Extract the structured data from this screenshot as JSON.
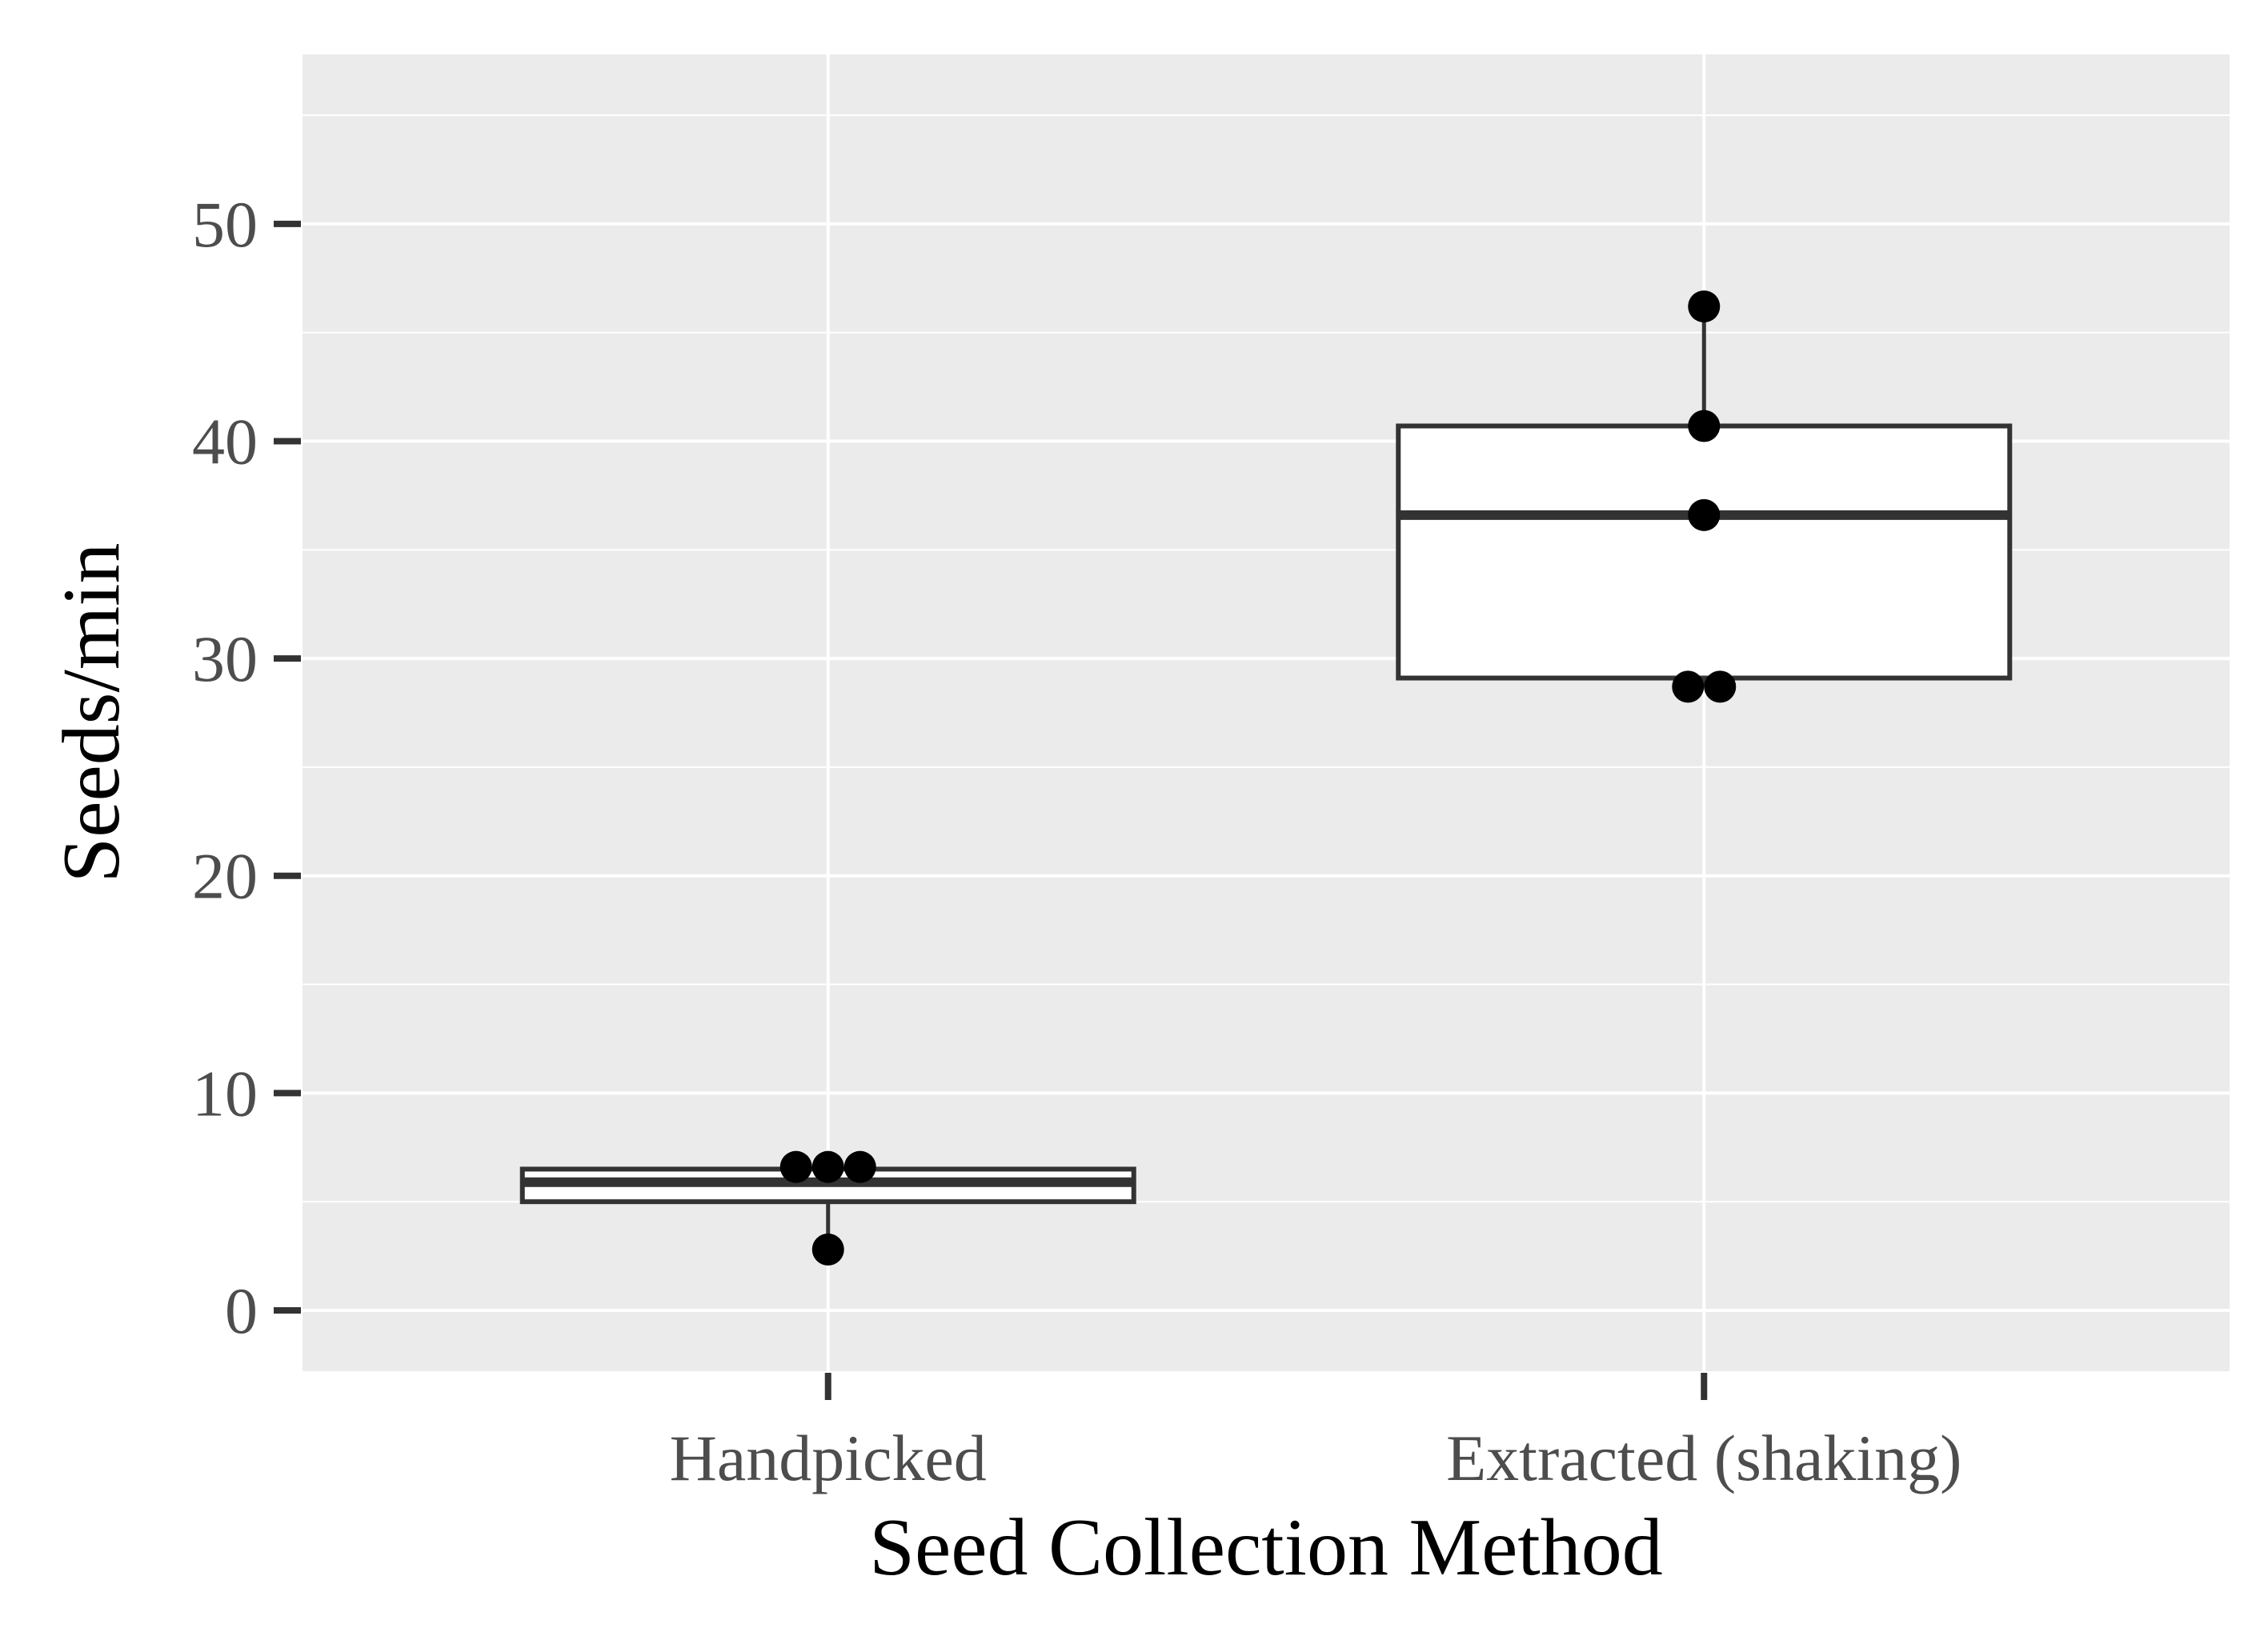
{
  "chart_data": {
    "type": "box",
    "title": "",
    "xlabel": "Seed Collection Method",
    "ylabel": "Seeds/min",
    "ylim": [
      -2.8,
      57.8
    ],
    "yticks": [
      0,
      10,
      20,
      30,
      40,
      50
    ],
    "ytick_labels": [
      "0",
      "10",
      "20",
      "30",
      "40",
      "50"
    ],
    "categories": [
      "Handpicked",
      "Extracted (shaking)"
    ],
    "grid": true,
    "legend": "none",
    "colors": {
      "panel_background": "#ebebeb",
      "grid": "#ffffff",
      "box_fill": "#ffffff",
      "box_outline": "#333333",
      "points": "#000000",
      "tick_labels": "#4d4d4d",
      "axis_title": "#000000"
    },
    "boxes": [
      {
        "category": "Handpicked",
        "whisker_low": 2.8,
        "q1": 5.0,
        "median": 5.9,
        "q3": 6.5,
        "whisker_high": 6.6,
        "points": [
          2.8,
          6.6,
          6.6,
          6.6
        ]
      },
      {
        "category": "Extracted (shaking)",
        "whisker_low": 28.7,
        "q1": 29.1,
        "median": 36.6,
        "q3": 40.7,
        "whisker_high": 46.2,
        "points": [
          28.7,
          28.7,
          36.6,
          40.7,
          46.2
        ]
      }
    ]
  }
}
